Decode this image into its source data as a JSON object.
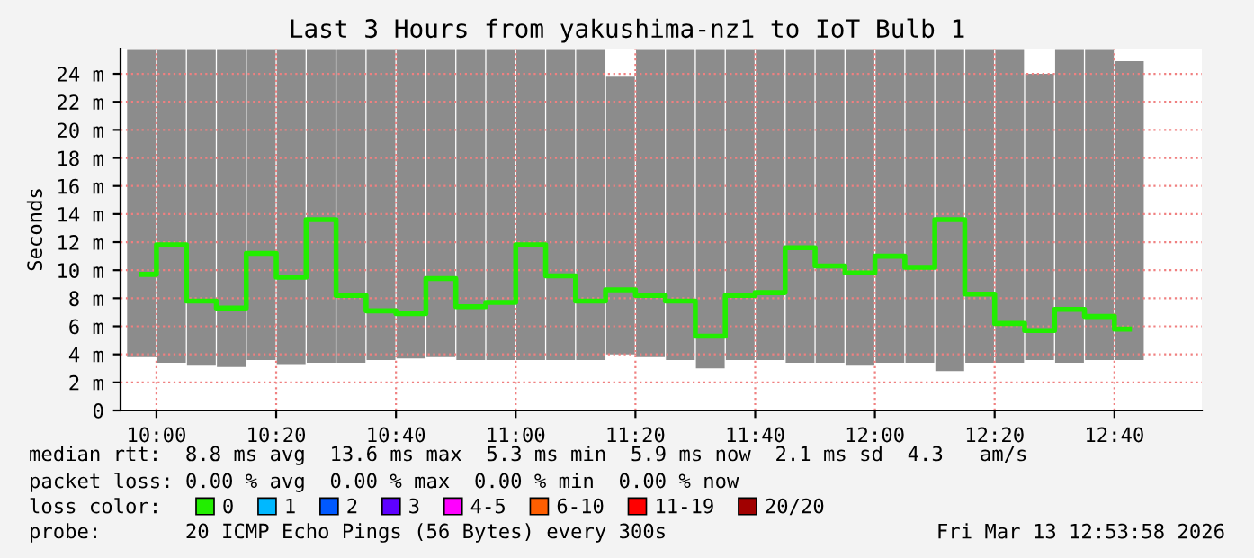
{
  "chart_data": {
    "type": "bar",
    "title": "Last 3 Hours from yakushima-nz1 to IoT Bulb 1",
    "ylabel": "Seconds",
    "x": [
      9.9583,
      10.0417,
      10.125,
      10.2083,
      10.2917,
      10.375,
      10.4583,
      10.5417,
      10.625,
      10.7083,
      10.7917,
      10.875,
      10.9583,
      11.0417,
      11.125,
      11.2083,
      11.2917,
      11.375,
      11.4583,
      11.5417,
      11.625,
      11.7083,
      11.7917,
      11.875,
      11.9583,
      12.0417,
      12.125,
      12.2083,
      12.2917,
      12.375,
      12.4583,
      12.5417,
      12.625,
      12.7083
    ],
    "series": [
      {
        "type": "bar",
        "color": "#8c8c8c",
        "base": [
          3.8,
          3.4,
          3.2,
          3.1,
          3.6,
          3.3,
          3.4,
          3.4,
          3.6,
          3.7,
          3.8,
          3.6,
          3.6,
          3.6,
          3.6,
          3.6,
          4.0,
          3.8,
          3.6,
          3.0,
          3.6,
          3.6,
          3.4,
          3.4,
          3.2,
          3.4,
          3.4,
          2.8,
          3.4,
          3.4,
          3.6,
          3.4,
          3.6,
          3.6
        ],
        "values": [
          21.9,
          22.3,
          22.5,
          22.6,
          22.1,
          22.4,
          22.3,
          22.3,
          22.1,
          22.0,
          21.9,
          22.1,
          22.1,
          22.1,
          22.1,
          22.1,
          19.8,
          21.9,
          22.1,
          22.7,
          22.1,
          22.1,
          22.3,
          22.3,
          22.5,
          22.3,
          22.3,
          22.9,
          22.3,
          22.3,
          20.4,
          22.3,
          22.1,
          21.3
        ]
      },
      {
        "type": "step",
        "name": "0",
        "color": "#22ee00",
        "values": [
          9.7,
          11.8,
          7.8,
          7.3,
          11.2,
          9.5,
          13.6,
          8.2,
          7.1,
          6.9,
          9.4,
          7.4,
          7.7,
          11.8,
          9.6,
          7.8,
          8.6,
          8.2,
          7.8,
          5.3,
          8.2,
          8.4,
          11.6,
          10.3,
          9.8,
          11.0,
          10.2,
          13.6,
          8.3,
          6.2,
          5.7,
          7.2,
          6.7,
          5.8
        ]
      },
      {
        "type": "step",
        "name": "1",
        "color": "#00b8ff",
        "values": [
          null,
          null,
          null,
          null,
          null,
          null,
          null,
          null,
          null,
          null,
          null,
          null,
          null,
          null,
          null,
          null,
          null,
          null,
          null,
          null,
          null,
          null,
          null,
          null,
          null,
          null,
          null,
          null,
          null,
          null,
          null,
          null,
          null,
          null
        ]
      },
      {
        "type": "step",
        "name": "2",
        "color": "#0059ff",
        "values": [
          null,
          null,
          null,
          null,
          null,
          null,
          null,
          null,
          null,
          null,
          null,
          null,
          null,
          null,
          null,
          null,
          null,
          null,
          null,
          null,
          null,
          null,
          null,
          null,
          null,
          null,
          null,
          null,
          null,
          null,
          null,
          null,
          null,
          null
        ]
      },
      {
        "type": "step",
        "name": "3",
        "color": "#5e00ff",
        "values": [
          null,
          null,
          null,
          null,
          null,
          null,
          null,
          null,
          null,
          null,
          null,
          null,
          null,
          null,
          null,
          null,
          null,
          null,
          null,
          null,
          null,
          null,
          null,
          null,
          null,
          null,
          null,
          null,
          null,
          null,
          null,
          null,
          null,
          null
        ]
      },
      {
        "type": "step",
        "name": "4-5",
        "color": "#ff00ff",
        "values": [
          null,
          null,
          null,
          null,
          null,
          null,
          null,
          null,
          null,
          null,
          null,
          null,
          null,
          null,
          null,
          null,
          null,
          null,
          null,
          null,
          null,
          null,
          null,
          null,
          null,
          null,
          null,
          null,
          null,
          null,
          null,
          null,
          null,
          null
        ]
      },
      {
        "type": "step",
        "name": "6-10",
        "color": "#ff5e00",
        "values": [
          null,
          null,
          null,
          null,
          null,
          null,
          null,
          null,
          null,
          null,
          null,
          null,
          null,
          null,
          null,
          null,
          null,
          null,
          null,
          null,
          null,
          null,
          null,
          null,
          null,
          null,
          null,
          null,
          null,
          null,
          null,
          null,
          null,
          null
        ]
      },
      {
        "type": "step",
        "name": "11-19",
        "color": "#ff0000",
        "values": [
          null,
          null,
          null,
          null,
          null,
          null,
          null,
          null,
          null,
          null,
          null,
          null,
          null,
          null,
          null,
          null,
          null,
          null,
          null,
          null,
          null,
          null,
          null,
          null,
          null,
          null,
          null,
          null,
          null,
          null,
          null,
          null,
          null,
          null
        ]
      },
      {
        "type": "step",
        "name": "20/20",
        "color": "#a10000",
        "values": [
          null,
          null,
          null,
          null,
          null,
          null,
          null,
          null,
          null,
          null,
          null,
          null,
          null,
          null,
          null,
          null,
          null,
          null,
          null,
          null,
          null,
          null,
          null,
          null,
          null,
          null,
          null,
          null,
          null,
          null,
          null,
          null,
          null,
          null
        ]
      }
    ],
    "legend_title": "loss color:",
    "legend": "bottom",
    "xlim": [
      9.9,
      12.91
    ],
    "xticks": [
      {
        "value": 10,
        "label": "10:00"
      },
      {
        "value": 10.3333,
        "label": "10:20"
      },
      {
        "value": 10.6667,
        "label": "10:40"
      },
      {
        "value": 11,
        "label": "11:00"
      },
      {
        "value": 11.3333,
        "label": "11:20"
      },
      {
        "value": 11.6667,
        "label": "11:40"
      },
      {
        "value": 12,
        "label": "12:00"
      },
      {
        "value": 12.3333,
        "label": "12:20"
      },
      {
        "value": 12.6667,
        "label": "12:40"
      }
    ],
    "ylim": [
      0,
      25.8
    ],
    "yticks": [
      0,
      {
        "value": 2,
        "label": "2 m"
      },
      {
        "value": 4,
        "label": "4 m"
      },
      {
        "value": 6,
        "label": "6 m"
      },
      {
        "value": 8,
        "label": "8 m"
      },
      {
        "value": 10,
        "label": "10 m"
      },
      {
        "value": 12,
        "label": "12 m"
      },
      {
        "value": 14,
        "label": "14 m"
      },
      {
        "value": 16,
        "label": "16 m"
      },
      {
        "value": 18,
        "label": "18 m"
      },
      {
        "value": 20,
        "label": "20 m"
      },
      {
        "value": 22,
        "label": "22 m"
      },
      {
        "value": 24,
        "label": "24 m"
      }
    ],
    "grid": true,
    "annotations": [
      "median rtt:  8.8 ms avg  13.6 ms max  5.3 ms min  5.9 ms now  2.1 ms sd  4.3   am/s",
      "packet loss: 0.00 % avg  0.00 % max  0.00 % min  0.00 % now",
      "probe:       20 ICMP Echo Pings (56 Bytes) every 300s",
      "Fri Mar 13 12:53:58 2026"
    ]
  }
}
